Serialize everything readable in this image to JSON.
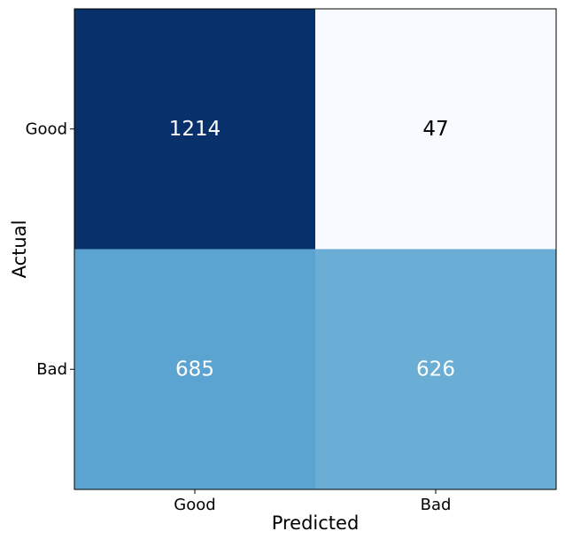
{
  "chart_data": {
    "type": "heatmap",
    "title": "",
    "xlabel": "Predicted",
    "ylabel": "Actual",
    "x_categories": [
      "Good",
      "Bad"
    ],
    "y_categories": [
      "Good",
      "Bad"
    ],
    "values": [
      [
        1214,
        47
      ],
      [
        685,
        626
      ]
    ],
    "colormap": "Blues",
    "cell_colors": [
      [
        "#08306b",
        "#f7fbff"
      ],
      [
        "#5ba3d0",
        "#6aaed6"
      ]
    ],
    "text_colors": [
      [
        "#ffffff",
        "#000000"
      ],
      [
        "#ffffff",
        "#ffffff"
      ]
    ],
    "grid": false,
    "legend": "none"
  }
}
